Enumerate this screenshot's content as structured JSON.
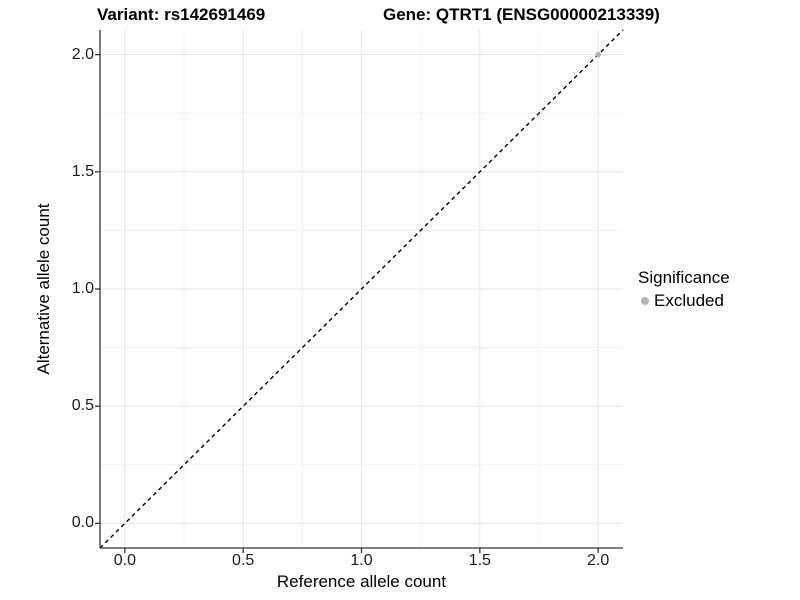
{
  "header": {
    "variant_title": "Variant: rs142691469",
    "gene_title": "Gene: QTRT1 (ENSG00000213339)"
  },
  "chart_data": {
    "type": "scatter",
    "title": "Variant: rs142691469   Gene: QTRT1 (ENSG00000213339)",
    "xlabel": "Reference allele count",
    "ylabel": "Alternative allele count",
    "xlim": [
      -0.105,
      2.105
    ],
    "ylim": [
      -0.105,
      2.105
    ],
    "x_major_ticks": [
      0.0,
      0.5,
      1.0,
      1.5,
      2.0
    ],
    "y_major_ticks": [
      0.0,
      0.5,
      1.0,
      1.5,
      2.0
    ],
    "x_tick_labels": [
      "0.0",
      "0.5",
      "1.0",
      "1.5",
      "2.0"
    ],
    "y_tick_labels": [
      "0.0",
      "0.5",
      "1.0",
      "1.5",
      "2.0"
    ],
    "x_minor_ticks": [
      0.25,
      0.75,
      1.25,
      1.75
    ],
    "y_minor_ticks": [
      0.25,
      0.75,
      1.25,
      1.75
    ],
    "grid": "major and minor, light gray, no panel border, axis lines left and bottom",
    "reference_line": {
      "slope": 1,
      "intercept": 0,
      "linetype": "dashed",
      "color": "#000000"
    },
    "series": [
      {
        "name": "Excluded",
        "color": "#b4b4b4",
        "points": [
          {
            "x": 2.0,
            "y": 2.0
          }
        ]
      }
    ],
    "legend": {
      "title": "Significance",
      "position": "right",
      "entries": [
        {
          "label": "Excluded",
          "color": "#b4b4b4"
        }
      ]
    }
  },
  "colors": {
    "background": "#ffffff",
    "grid_major": "#e4e4e4",
    "grid_minor": "#f0f0f0",
    "axis_line": "#333333",
    "tick_mark": "#333333",
    "text": "#000000",
    "excluded": "#b4b4b4"
  }
}
